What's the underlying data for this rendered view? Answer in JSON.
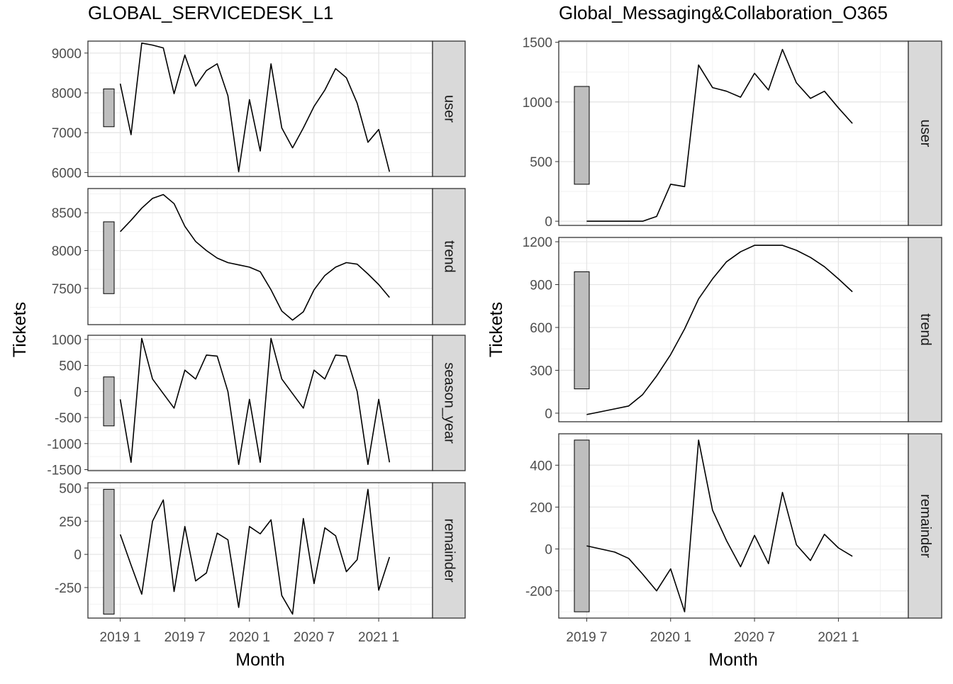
{
  "chart_data": [
    {
      "type": "line",
      "title": "GLOBAL_SERVICEDESK_L1",
      "xlabel": "Month",
      "ylabel": "Tickets",
      "x_ticks": [
        "2019 1",
        "2019 7",
        "2020 1",
        "2020 7",
        "2021 1"
      ],
      "x": [
        "2019-01",
        "2019-02",
        "2019-03",
        "2019-04",
        "2019-05",
        "2019-06",
        "2019-07",
        "2019-08",
        "2019-09",
        "2019-10",
        "2019-11",
        "2019-12",
        "2020-01",
        "2020-02",
        "2020-03",
        "2020-04",
        "2020-05",
        "2020-06",
        "2020-07",
        "2020-08",
        "2020-09",
        "2020-10",
        "2020-11",
        "2020-12",
        "2021-01",
        "2021-02"
      ],
      "grid": true,
      "panels": [
        {
          "label": "user",
          "ylim": [
            5900,
            9300
          ],
          "yticks": [
            "9000",
            "8000",
            "7000",
            "6000"
          ],
          "ytick_values": [
            9000,
            8000,
            7000,
            6000
          ],
          "scale_bar": [
            7150,
            8100
          ],
          "values": [
            8230,
            6950,
            9250,
            9200,
            9130,
            7980,
            8950,
            8170,
            8560,
            8730,
            7930,
            6020,
            7830,
            6540,
            8730,
            7120,
            6620,
            7120,
            7660,
            8070,
            8610,
            8380,
            7740,
            6760,
            7080,
            6020
          ]
        },
        {
          "label": "trend",
          "ylim": [
            7020,
            8820
          ],
          "yticks": [
            "8500",
            "8000",
            "7500"
          ],
          "ytick_values": [
            8500,
            8000,
            7500
          ],
          "scale_bar": [
            7430,
            8380
          ],
          "values": [
            8250,
            8400,
            8560,
            8690,
            8740,
            8620,
            8320,
            8120,
            8000,
            7900,
            7840,
            7810,
            7780,
            7720,
            7480,
            7200,
            7080,
            7190,
            7480,
            7670,
            7780,
            7840,
            7820,
            7690,
            7550,
            7380
          ]
        },
        {
          "label": "season_year",
          "ylim": [
            -1520,
            1080
          ],
          "yticks": [
            "1000",
            "500",
            "0",
            "-500",
            "-1000",
            "-1500"
          ],
          "ytick_values": [
            1000,
            500,
            0,
            -500,
            -1000,
            -1500
          ],
          "scale_bar": [
            -660,
            280
          ],
          "values": [
            -150,
            -1360,
            1020,
            240,
            -40,
            -320,
            410,
            240,
            700,
            680,
            0,
            -1400,
            -150,
            -1360,
            1020,
            240,
            -40,
            -320,
            410,
            240,
            700,
            680,
            0,
            -1400,
            -150,
            -1360
          ]
        },
        {
          "label": "remainder",
          "ylim": [
            -480,
            540
          ],
          "yticks": [
            "500",
            "250",
            "0",
            "-250"
          ],
          "ytick_values": [
            500,
            250,
            0,
            -250
          ],
          "scale_bar": [
            -450,
            490
          ],
          "values": [
            150,
            -80,
            -300,
            250,
            410,
            -280,
            210,
            -200,
            -140,
            160,
            110,
            -400,
            210,
            155,
            260,
            -310,
            -450,
            270,
            -220,
            200,
            140,
            -130,
            -40,
            490,
            -270,
            -20
          ]
        }
      ]
    },
    {
      "type": "line",
      "title": "Global_Messaging&Collaboration_O365",
      "xlabel": "Month",
      "ylabel": "Tickets",
      "x_ticks": [
        "2019 7",
        "2020 1",
        "2020 7",
        "2021 1"
      ],
      "x": [
        "2019-07",
        "2019-08",
        "2019-09",
        "2019-10",
        "2019-11",
        "2019-12",
        "2020-01",
        "2020-02",
        "2020-03",
        "2020-04",
        "2020-05",
        "2020-06",
        "2020-07",
        "2020-08",
        "2020-09",
        "2020-10",
        "2020-11",
        "2020-12",
        "2021-01",
        "2021-02"
      ],
      "grid": true,
      "panels": [
        {
          "label": "user",
          "ylim": [
            -35,
            1510
          ],
          "yticks": [
            "1500",
            "1000",
            "500",
            "0"
          ],
          "ytick_values": [
            1500,
            1000,
            500,
            0
          ],
          "scale_bar": [
            310,
            1130
          ],
          "values": [
            0,
            0,
            0,
            0,
            0,
            40,
            310,
            290,
            1310,
            1120,
            1090,
            1040,
            1240,
            1100,
            1440,
            1160,
            1030,
            1090,
            950,
            820
          ]
        },
        {
          "label": "trend",
          "ylim": [
            -60,
            1230
          ],
          "yticks": [
            "1200",
            "900",
            "600",
            "300",
            "0"
          ],
          "ytick_values": [
            1200,
            900,
            600,
            300,
            0
          ],
          "scale_bar": [
            170,
            990
          ],
          "values": [
            -10,
            10,
            30,
            50,
            130,
            260,
            410,
            590,
            800,
            940,
            1060,
            1130,
            1175,
            1175,
            1175,
            1140,
            1090,
            1025,
            940,
            850
          ]
        },
        {
          "label": "remainder",
          "ylim": [
            -330,
            550
          ],
          "yticks": [
            "400",
            "200",
            "0",
            "-200"
          ],
          "ytick_values": [
            400,
            200,
            0,
            -200
          ],
          "scale_bar": [
            -300,
            520
          ],
          "values": [
            15,
            0,
            -15,
            -45,
            -120,
            -200,
            -95,
            -300,
            520,
            185,
            40,
            -85,
            65,
            -70,
            270,
            20,
            -55,
            70,
            5,
            -35
          ]
        }
      ]
    }
  ]
}
